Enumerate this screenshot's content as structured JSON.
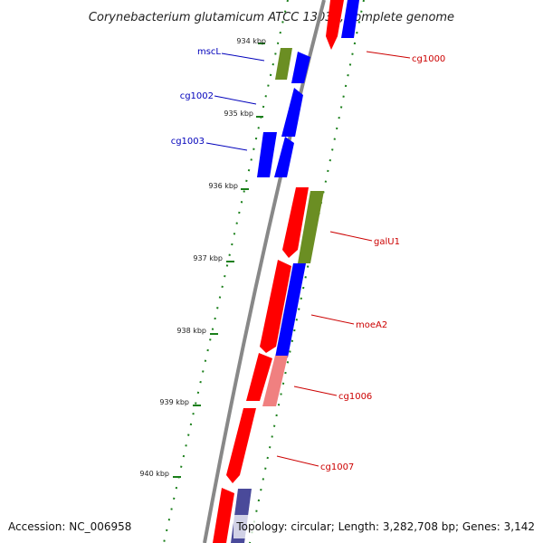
{
  "title": "Corynebacterium glutamicum ATCC 13032, complete genome",
  "footer": {
    "accession": "Accession: NC_006958",
    "topology": "Topology: circular; Length: 3,282,708 bp; Genes: 3,142"
  },
  "colors": {
    "backbone": "#888888",
    "kbp_tick": "#1a7f1a",
    "forward_strand": "#ff0000",
    "reverse_strand": "#0000ff",
    "label_forward": "#cc0000",
    "label_reverse": "#0000bb",
    "gene_olive": "#6b8e23",
    "gene_pink": "#f08080",
    "gene_slate": "#4a4a9a"
  },
  "kbp_labels": [
    "934 kbp",
    "935 kbp",
    "936 kbp",
    "937 kbp",
    "938 kbp",
    "939 kbp",
    "940 kbp"
  ],
  "gene_labels_reverse": [
    "mscL",
    "cg1002",
    "cg1003"
  ],
  "gene_labels_forward": [
    "cg1000",
    "galU1",
    "moeA2",
    "cg1006",
    "cg1007"
  ]
}
